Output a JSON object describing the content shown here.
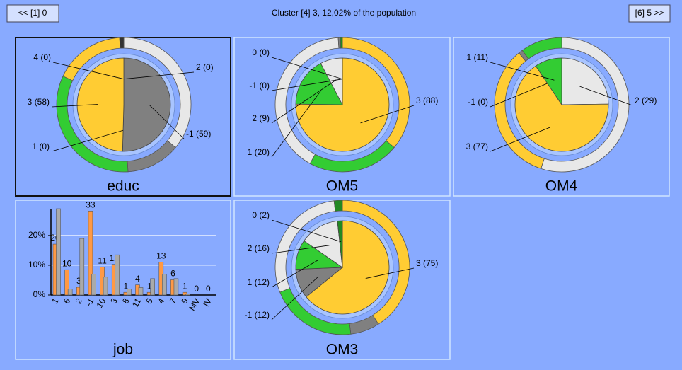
{
  "header": {
    "prev": "<< [1] 0",
    "title": "Cluster [4] 3, 12,02% of the population",
    "next": "[6] 5 >>"
  },
  "chart_data": [
    {
      "type": "pie",
      "title": "educ",
      "value_labels": [
        "2 (0)",
        "-1 (59)",
        "1 (0)",
        "3 (58)",
        "4 (0)"
      ],
      "values": [
        0,
        59,
        0,
        58,
        0
      ],
      "outer_values": [
        36,
        13,
        33,
        17,
        1
      ],
      "colors": [
        "#e8e8e8",
        "#808080",
        "#33cc33",
        "#ffcc33",
        "#333333"
      ]
    },
    {
      "type": "pie",
      "title": "OM5",
      "value_labels": [
        "3 (88)",
        "1 (20)",
        "2 (9)",
        "-1 (0)",
        "0 (0)"
      ],
      "values": [
        88,
        20,
        9,
        0,
        0
      ],
      "outer_values": [
        36,
        22,
        41,
        0.5,
        0.5
      ],
      "colors": [
        "#ffcc33",
        "#33cc33",
        "#e8e8e8",
        "#808080",
        "#228822"
      ]
    },
    {
      "type": "pie",
      "title": "OM4",
      "value_labels": [
        "2 (29)",
        "3 (77)",
        "-1 (0)",
        "1 (11)"
      ],
      "values": [
        29,
        77,
        0,
        11
      ],
      "outer_values": [
        55,
        34,
        1,
        10
      ],
      "colors": [
        "#e8e8e8",
        "#ffcc33",
        "#808080",
        "#33cc33"
      ]
    },
    {
      "type": "bar",
      "title": "job",
      "categories": [
        "1",
        "6",
        "2",
        "-1",
        "10",
        "3",
        "8",
        "11",
        "5",
        "4",
        "7",
        "9",
        "MV",
        "IV"
      ],
      "series": [
        {
          "color": "#ff9944",
          "values": [
            17.1,
            8.5,
            2.6,
            28.2,
            9.4,
            10.3,
            0.9,
            3.4,
            0.9,
            11.1,
            5.1,
            0.9,
            0,
            0
          ],
          "value_labels": [
            "20",
            "10",
            "3",
            "33",
            "11",
            "12",
            "1",
            "4",
            "1",
            "13",
            "6",
            "1",
            "0",
            "0"
          ]
        },
        {
          "color": "#aaaaaa",
          "values": [
            29,
            2,
            19,
            7,
            6,
            13.5,
            2,
            2.5,
            5.5,
            7,
            5.5,
            0.3,
            0,
            0
          ]
        }
      ],
      "ylim": [
        0,
        29
      ],
      "yticks": [
        {
          "value": 0,
          "label": "0%"
        },
        {
          "value": 10,
          "label": "10%"
        },
        {
          "value": 20,
          "label": "20%"
        }
      ],
      "grid": true
    },
    {
      "type": "pie",
      "title": "OM3",
      "value_labels": [
        "3 (75)",
        "-1 (12)",
        "1 (12)",
        "2 (16)",
        "0 (2)"
      ],
      "values": [
        75,
        12,
        12,
        16,
        2
      ],
      "outer_values": [
        41,
        7,
        21,
        29,
        2
      ],
      "colors": [
        "#ffcc33",
        "#808080",
        "#33cc33",
        "#e8e8e8",
        "#228822"
      ]
    }
  ]
}
